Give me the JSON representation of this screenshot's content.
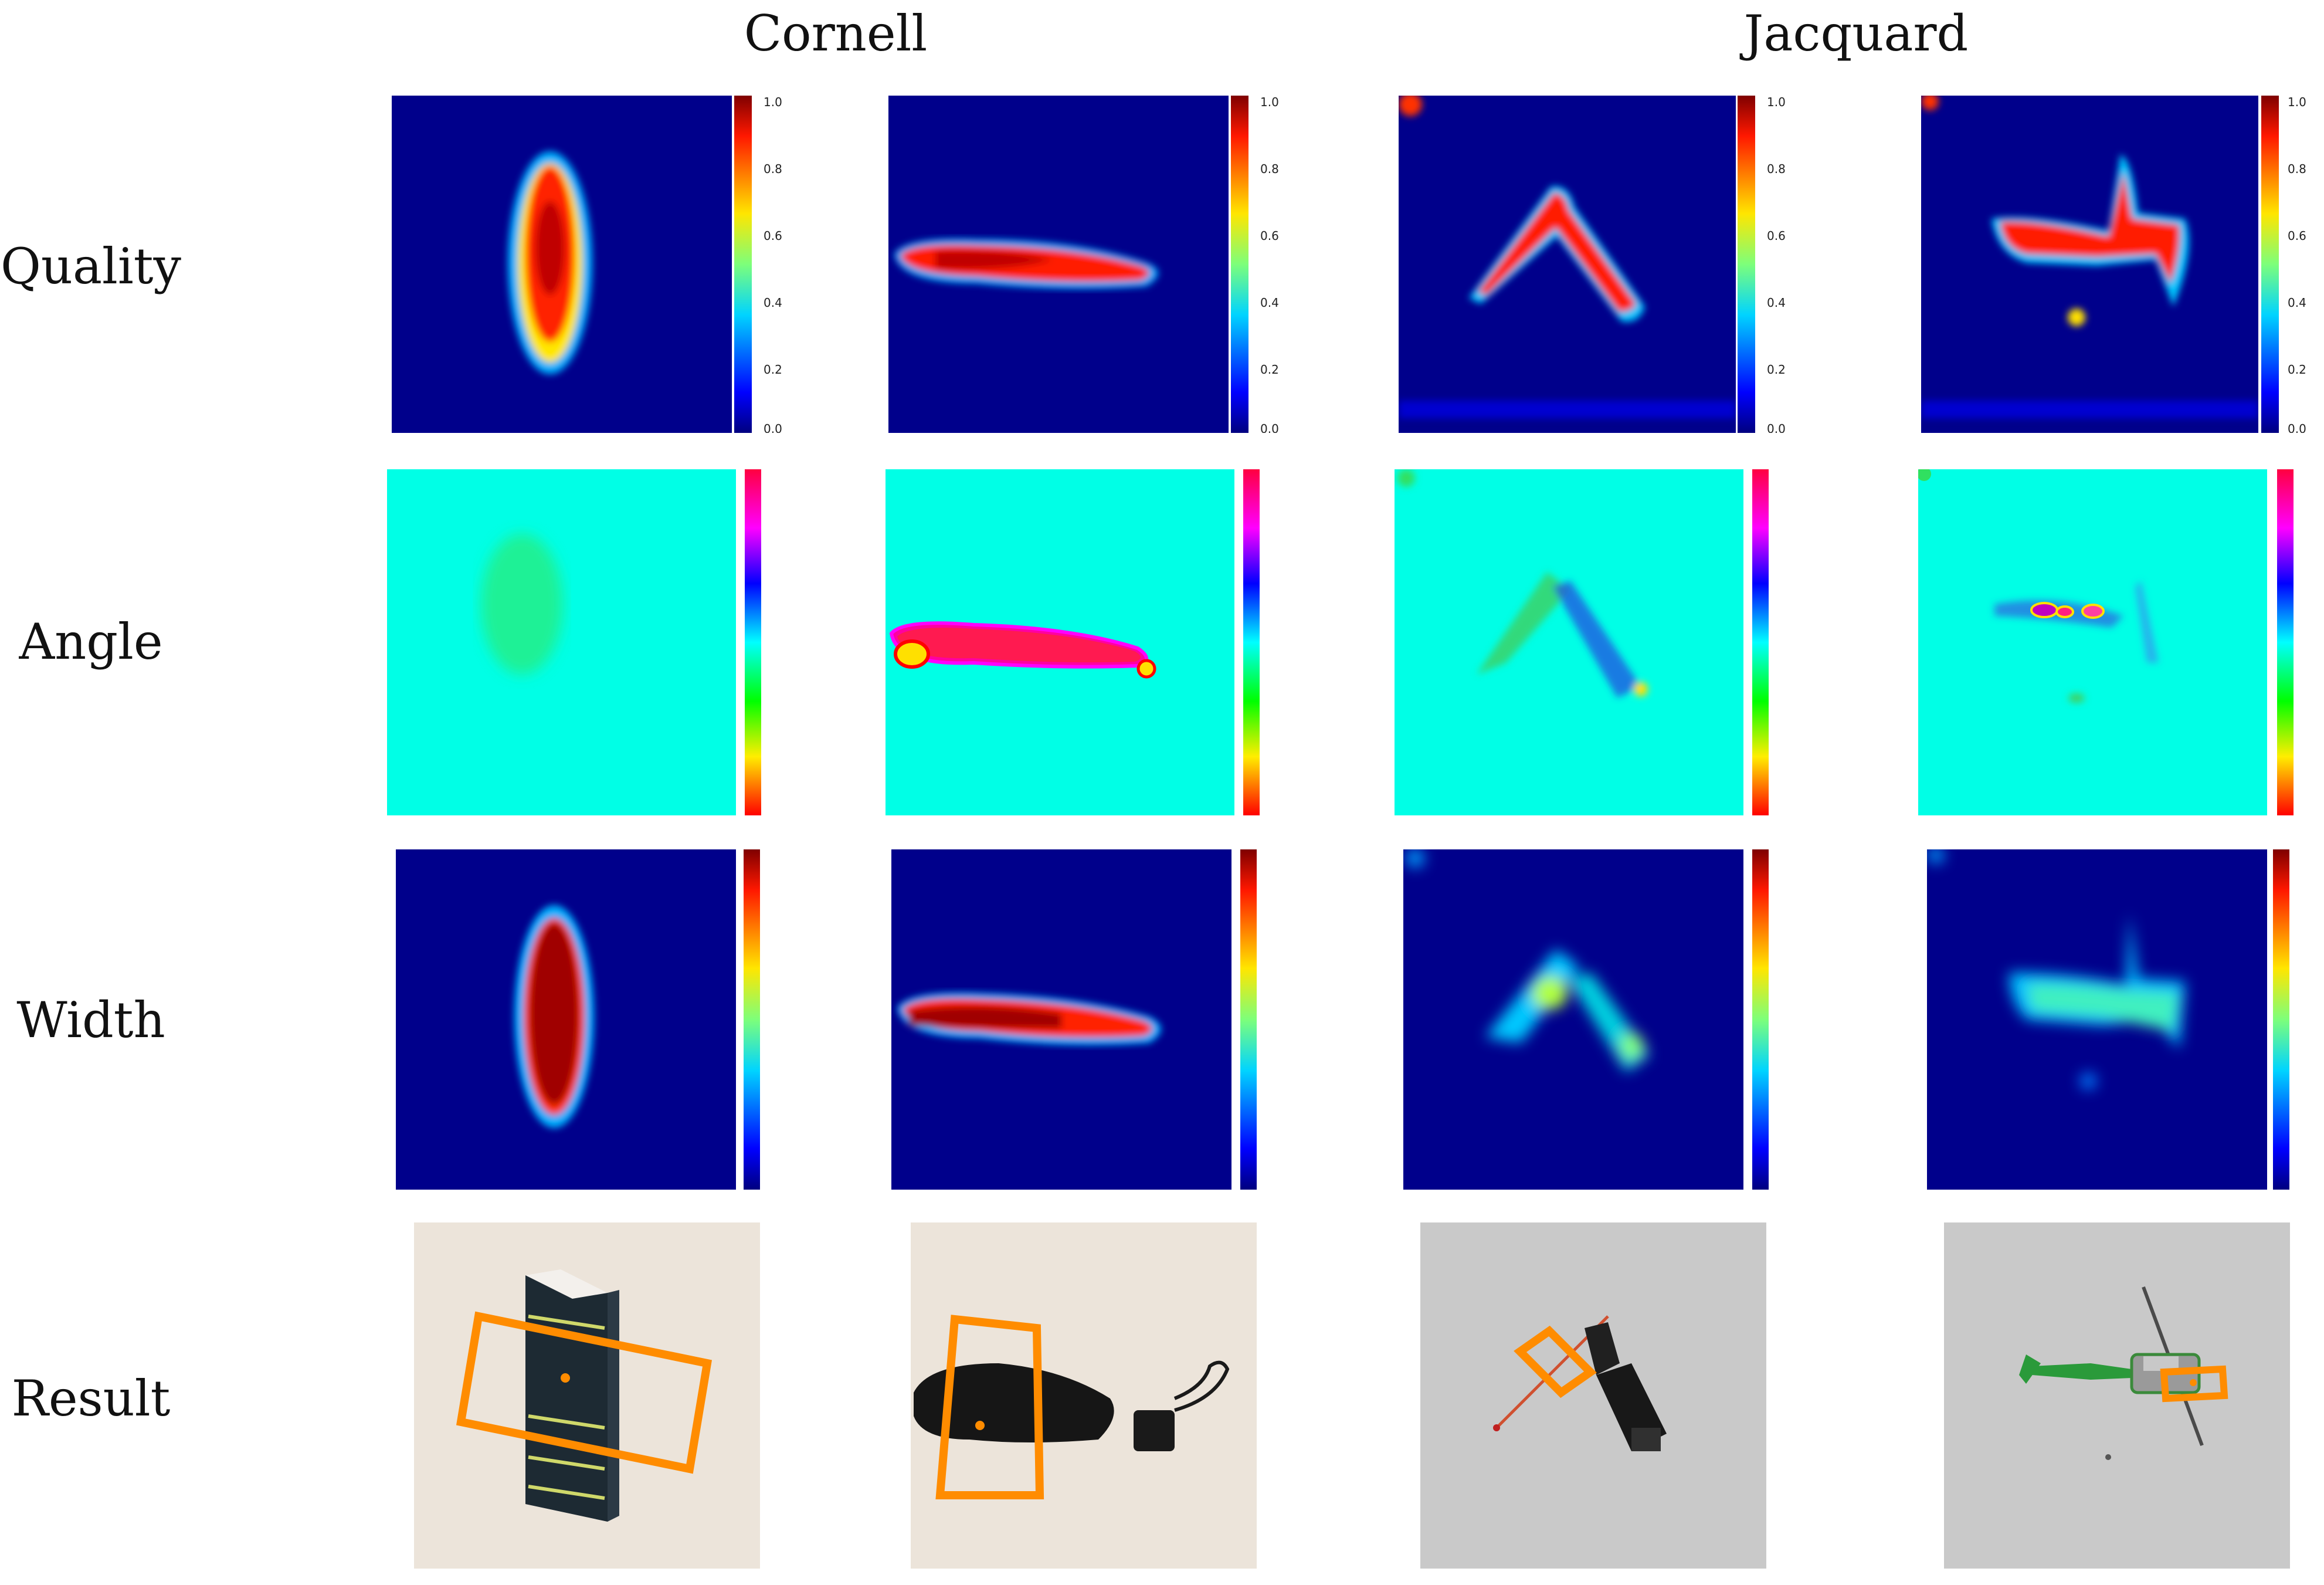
{
  "columns": {
    "cornell": "Cornell",
    "jacquard": "Jacquard"
  },
  "rows": {
    "quality": "Quality",
    "angle": "Angle",
    "width": "Width",
    "result": "Result"
  },
  "colorbars": {
    "quality_ticks": [
      "1.0",
      "0.8",
      "0.6",
      "0.4",
      "0.2",
      "0.0"
    ]
  },
  "colors": {
    "background_blue": "#00008b",
    "angle_background": "#00ffe6",
    "grasp_box": "#ff8c00",
    "result_floor_cornell": "#ece4da",
    "result_floor_jacquard": "#c9c9c9"
  }
}
